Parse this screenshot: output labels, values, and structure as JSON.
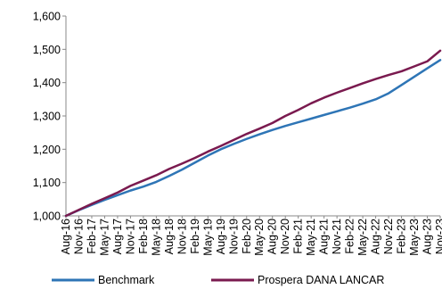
{
  "chart_data": {
    "type": "line",
    "title": "",
    "xlabel": "",
    "ylabel": "",
    "ylim": [
      1000,
      1600
    ],
    "y_ticks": [
      "1,000",
      "1,100",
      "1,200",
      "1,300",
      "1,400",
      "1,500",
      "1,600"
    ],
    "y_tick_values": [
      1000,
      1100,
      1200,
      1300,
      1400,
      1500,
      1600
    ],
    "grid": false,
    "legend_position": "bottom",
    "categories": [
      "Aug-16",
      "Nov-16",
      "Feb-17",
      "May-17",
      "Aug-17",
      "Nov-17",
      "Feb-18",
      "May-18",
      "Aug-18",
      "Nov-18",
      "Feb-19",
      "May-19",
      "Aug-19",
      "Nov-19",
      "Feb-20",
      "May-20",
      "Aug-20",
      "Nov-20",
      "Feb-21",
      "May-21",
      "Aug-21",
      "Nov-21",
      "Feb-22",
      "May-22",
      "Aug-22",
      "Nov-22",
      "Feb-23",
      "May-23",
      "Aug-23",
      "Nov-23"
    ],
    "series": [
      {
        "name": "Benchmark",
        "color": "#2e75b6",
        "values": [
          1000,
          1017,
          1033,
          1048,
          1062,
          1076,
          1088,
          1102,
          1120,
          1139,
          1160,
          1181,
          1200,
          1216,
          1231,
          1245,
          1258,
          1270,
          1281,
          1292,
          1303,
          1314,
          1325,
          1337,
          1350,
          1368,
          1393,
          1418,
          1443,
          1468
        ]
      },
      {
        "name": "Prospera DANA LANCAR",
        "color": "#7a1a4f",
        "values": [
          1000,
          1018,
          1036,
          1053,
          1070,
          1090,
          1106,
          1122,
          1141,
          1157,
          1174,
          1193,
          1210,
          1228,
          1246,
          1262,
          1279,
          1300,
          1318,
          1338,
          1355,
          1370,
          1384,
          1398,
          1411,
          1423,
          1434,
          1449,
          1464,
          1496
        ]
      }
    ]
  }
}
